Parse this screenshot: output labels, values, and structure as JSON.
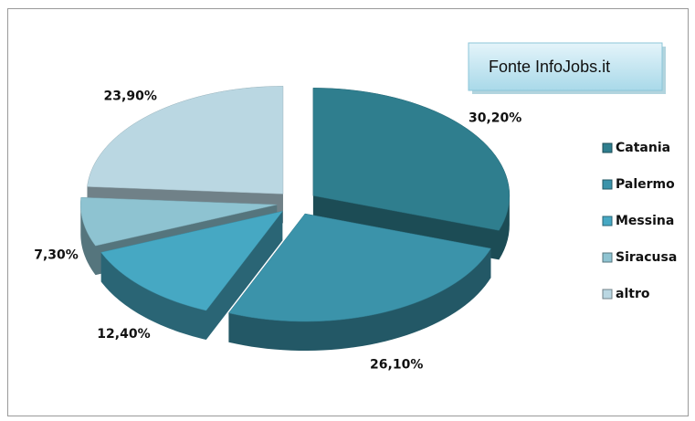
{
  "chart_data": {
    "type": "pie",
    "annotation": "Fonte InfoJobs.it",
    "categories": [
      "Catania",
      "Palermo",
      "Messina",
      "Siracusa",
      "altro"
    ],
    "values": [
      30.2,
      26.1,
      12.4,
      7.3,
      23.9
    ],
    "value_labels": [
      "30,20%",
      "26,10%",
      "12,40%",
      "7,30%",
      "23,90%"
    ],
    "colors": [
      "#2f7e8e",
      "#3b93aa",
      "#46a8c3",
      "#8ec3d1",
      "#bad7e2"
    ],
    "legend": "right"
  }
}
